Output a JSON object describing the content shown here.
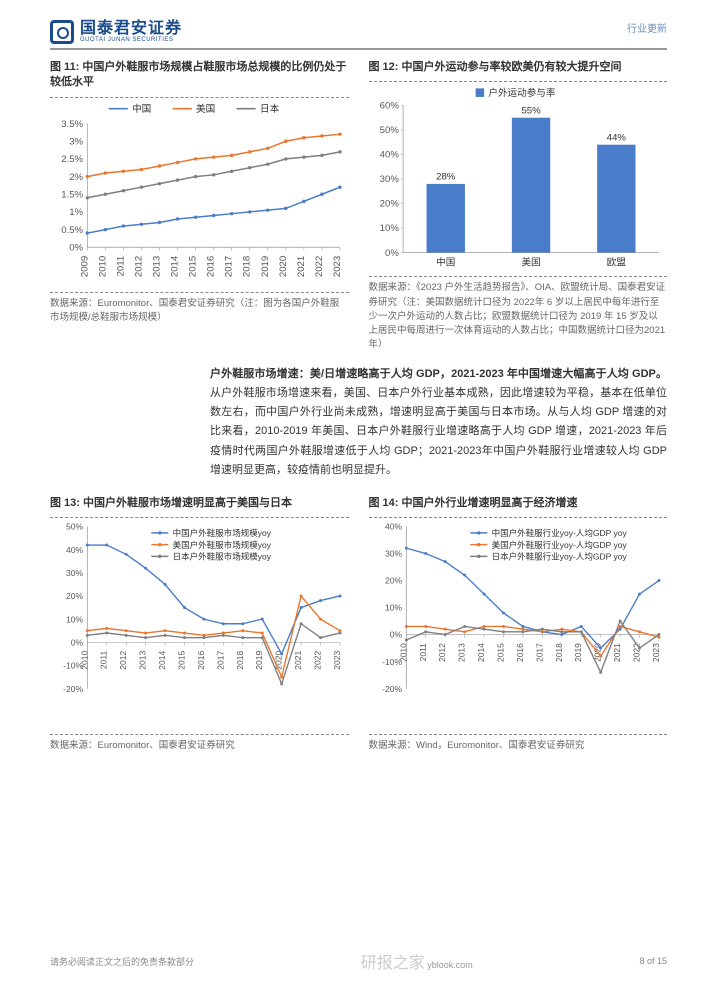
{
  "header": {
    "logo_cn": "国泰君安证券",
    "logo_en": "GUOTAI JUNAN SECURITIES",
    "right": "行业更新"
  },
  "fig11": {
    "title": "图 11: 中国户外鞋服市场规模占鞋服市场总规模的比例仍处于较低水平",
    "type": "line",
    "legend": [
      "中国",
      "美国",
      "日本"
    ],
    "colors": [
      "#4a7dc9",
      "#e8762d",
      "#7f7f7f"
    ],
    "x_categories": [
      "2009",
      "2010",
      "2011",
      "2012",
      "2013",
      "2014",
      "2015",
      "2016",
      "2017",
      "2018",
      "2019",
      "2020",
      "2021",
      "2022",
      "2023"
    ],
    "ylim": [
      0,
      3.5
    ],
    "ytick_step": 0.5,
    "ysuffix": "%",
    "series": [
      [
        0.4,
        0.5,
        0.6,
        0.65,
        0.7,
        0.8,
        0.85,
        0.9,
        0.95,
        1.0,
        1.05,
        1.1,
        1.3,
        1.5,
        1.7
      ],
      [
        2.0,
        2.1,
        2.15,
        2.2,
        2.3,
        2.4,
        2.5,
        2.55,
        2.6,
        2.7,
        2.8,
        3.0,
        3.1,
        3.15,
        3.2
      ],
      [
        1.4,
        1.5,
        1.6,
        1.7,
        1.8,
        1.9,
        2.0,
        2.05,
        2.15,
        2.25,
        2.35,
        2.5,
        2.55,
        2.6,
        2.7
      ]
    ],
    "source": "数据来源：Euromonitor、国泰君安证券研究（注：图为各国户外鞋服市场规模/总鞋服市场规模）",
    "axis_color": "#999",
    "grid_color": "#ddd",
    "font_size": 9
  },
  "fig12": {
    "title": "图 12: 中国户外运动参与率较欧美仍有较大提升空间",
    "type": "bar",
    "legend": [
      "户外运动参与率"
    ],
    "colors": [
      "#4a7dc9"
    ],
    "categories": [
      "中国",
      "美国",
      "欧盟"
    ],
    "values": [
      28,
      55,
      44
    ],
    "value_labels": [
      "28%",
      "55%",
      "44%"
    ],
    "ylim": [
      0,
      60
    ],
    "ytick_step": 10,
    "ysuffix": "%",
    "bar_width": 0.45,
    "source": "数据来源：《2023 户外生活趋势报告》、OIA、欧盟统计局、国泰君安证券研究（注：美国数据统计口径为 2022年 6 岁以上居民中每年进行至少一次户外运动的人数占比；欧盟数据统计口径为 2019 年 15 岁及以上居民中每周进行一次体育运动的人数占比；中国数据统计口径为2021 年）",
    "axis_color": "#999",
    "font_size": 9
  },
  "body": {
    "lead": "户外鞋服市场增速：美/日增速略高于人均 GDP，2021-2023 年中国增速大幅高于人均 GDP。",
    "rest": "从户外鞋服市场增速来看，美国、日本户外行业基本成熟，因此增速较为平稳，基本在低单位数左右，而中国户外行业尚未成熟，增速明显高于美国与日本市场。从与人均 GDP 增速的对比来看，2010-2019 年美国、日本户外鞋服行业增速略高于人均 GDP 增速，2021-2023 年后疫情时代两国户外鞋服增速低于人均 GDP；2021-2023年中国户外鞋服行业增速较人均 GDP 增速明显更高，较疫情前也明显提升。"
  },
  "fig13": {
    "title": "图 13: 中国户外鞋服市场增速明显高于美国与日本",
    "type": "line",
    "legend": [
      "中国户外鞋服市场规模yoy",
      "美国户外鞋服市场规模yoy",
      "日本户外鞋服市场规模yoy"
    ],
    "colors": [
      "#4a7dc9",
      "#e8762d",
      "#7f7f7f"
    ],
    "x_categories": [
      "2010",
      "2011",
      "2012",
      "2013",
      "2014",
      "2015",
      "2016",
      "2017",
      "2018",
      "2019",
      "2020",
      "2021",
      "2022",
      "2023"
    ],
    "ylim": [
      -20,
      50
    ],
    "ytick_step": 10,
    "ysuffix": "%",
    "series": [
      [
        42,
        42,
        38,
        32,
        25,
        15,
        10,
        8,
        8,
        10,
        -5,
        15,
        18,
        20
      ],
      [
        5,
        6,
        5,
        4,
        5,
        4,
        3,
        4,
        5,
        4,
        -15,
        20,
        10,
        5
      ],
      [
        3,
        4,
        3,
        2,
        3,
        2,
        2,
        3,
        2,
        2,
        -18,
        8,
        2,
        4
      ]
    ],
    "source": "数据来源：Euromonitor、国泰君安证券研究",
    "axis_color": "#999",
    "font_size": 8
  },
  "fig14": {
    "title": "图 14: 中国户外行业增速明显高于经济增速",
    "type": "line",
    "legend": [
      "中国户外鞋服行业yoy-人均GDP yoy",
      "美国户外鞋服行业yoy-人均GDP yoy",
      "日本户外鞋服行业yoy-人均GDP yoy"
    ],
    "colors": [
      "#4a7dc9",
      "#e8762d",
      "#7f7f7f"
    ],
    "x_categories": [
      "2010",
      "2011",
      "2012",
      "2013",
      "2014",
      "2015",
      "2016",
      "2017",
      "2018",
      "2019",
      "2020",
      "2021",
      "2022",
      "2023"
    ],
    "ylim": [
      -20,
      40
    ],
    "ytick_step": 10,
    "ysuffix": "%",
    "series": [
      [
        32,
        30,
        27,
        22,
        15,
        8,
        3,
        1,
        0,
        3,
        -5,
        2,
        15,
        20
      ],
      [
        3,
        3,
        2,
        1,
        3,
        3,
        2,
        1,
        2,
        1,
        -8,
        3,
        1,
        -1
      ],
      [
        -2,
        1,
        0,
        3,
        2,
        1,
        1,
        2,
        1,
        1,
        -14,
        5,
        -5,
        0
      ]
    ],
    "source": "数据来源：Wind，Euromonitor、国泰君安证券研究",
    "axis_color": "#999",
    "font_size": 8
  },
  "footer": {
    "disclaimer": "请务必阅读正文之后的免责条款部分",
    "watermark1": "研报之家",
    "watermark2": "yblook.com",
    "page": "8 of 15"
  }
}
